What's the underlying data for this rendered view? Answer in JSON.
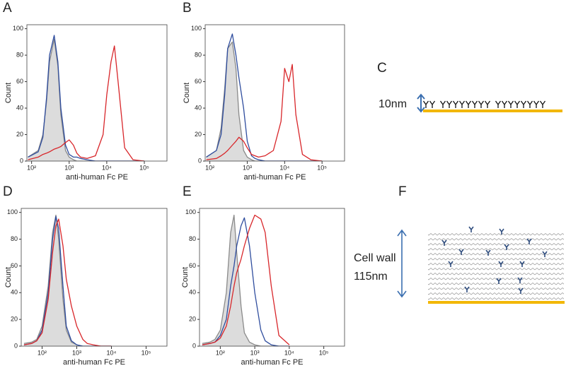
{
  "chart_data": [
    {
      "type": "histogram-overlay",
      "label": "A",
      "xlabel": "anti-human Fc PE",
      "ylabel": "Count",
      "log_x": true,
      "x": [
        80,
        150,
        200,
        250,
        300,
        400,
        500,
        600,
        800,
        1000,
        1300,
        1600,
        2000,
        3000,
        5000,
        8000,
        10000,
        13000,
        16000,
        20000,
        30000,
        50000,
        100000
      ],
      "xlim": [
        75,
        400000
      ],
      "ylim": [
        0,
        103
      ],
      "xticks": [
        {
          "value": 100,
          "label": "10²"
        },
        {
          "value": 1000,
          "label": "10³"
        },
        {
          "value": 10000,
          "label": "10⁴"
        },
        {
          "value": 100000,
          "label": "10⁵"
        }
      ],
      "yticks": [
        0,
        20,
        40,
        60,
        80,
        100
      ],
      "series": [
        {
          "color": "#8a8a8a",
          "fill": "#dcdcdc",
          "values": [
            3,
            8,
            20,
            45,
            75,
            92,
            72,
            35,
            8,
            3,
            1,
            0,
            0,
            0,
            0,
            0,
            0,
            0,
            0,
            0,
            0,
            0,
            0
          ]
        },
        {
          "color": "#2f4d9e",
          "values": [
            3,
            7,
            18,
            48,
            80,
            95,
            75,
            40,
            12,
            5,
            3,
            3,
            2,
            1,
            0,
            0,
            0,
            0,
            0,
            0,
            0,
            0,
            0
          ]
        },
        {
          "color": "#d8262a",
          "values": [
            1,
            3,
            5,
            6,
            7,
            9,
            10,
            11,
            14,
            16,
            12,
            6,
            3,
            2,
            4,
            20,
            50,
            75,
            87,
            60,
            10,
            1,
            0
          ]
        }
      ]
    },
    {
      "type": "histogram-overlay",
      "label": "B",
      "xlabel": "anti-human Fc PE",
      "ylabel": "Count",
      "log_x": true,
      "x": [
        80,
        150,
        200,
        250,
        300,
        400,
        500,
        600,
        800,
        1000,
        1300,
        1600,
        2000,
        3000,
        5000,
        8000,
        10000,
        13000,
        16000,
        20000,
        30000,
        50000,
        100000
      ],
      "xlim": [
        75,
        400000
      ],
      "ylim": [
        0,
        103
      ],
      "xticks": [
        {
          "value": 100,
          "label": "10²"
        },
        {
          "value": 1000,
          "label": "10³"
        },
        {
          "value": 10000,
          "label": "10⁴"
        },
        {
          "value": 100000,
          "label": "10⁵"
        }
      ],
      "yticks": [
        0,
        20,
        40,
        60,
        80,
        100
      ],
      "series": [
        {
          "color": "#8a8a8a",
          "fill": "#dcdcdc",
          "values": [
            3,
            8,
            25,
            55,
            85,
            90,
            70,
            35,
            8,
            3,
            1,
            0,
            0,
            0,
            0,
            0,
            0,
            0,
            0,
            0,
            0,
            0,
            0
          ]
        },
        {
          "color": "#2f4d9e",
          "values": [
            3,
            8,
            20,
            50,
            85,
            96,
            80,
            63,
            40,
            15,
            4,
            2,
            1,
            0,
            0,
            0,
            0,
            0,
            0,
            0,
            0,
            0,
            0
          ]
        },
        {
          "color": "#d8262a",
          "values": [
            1,
            2,
            4,
            6,
            8,
            12,
            15,
            18,
            15,
            10,
            5,
            4,
            3,
            4,
            8,
            30,
            70,
            60,
            73,
            35,
            5,
            1,
            0
          ]
        }
      ]
    },
    {
      "type": "histogram-overlay",
      "label": "D",
      "xlabel": "anti-human Fc PE",
      "ylabel": "Count",
      "log_x": true,
      "x": [
        30,
        50,
        70,
        100,
        150,
        200,
        250,
        300,
        400,
        500,
        700,
        1000,
        1500,
        2000,
        3000,
        5000,
        10000
      ],
      "xlim": [
        25,
        400000
      ],
      "ylim": [
        0,
        103
      ],
      "xticks": [
        {
          "value": 100,
          "label": "10²"
        },
        {
          "value": 1000,
          "label": "10³"
        },
        {
          "value": 10000,
          "label": "10⁴"
        },
        {
          "value": 100000,
          "label": "10⁵"
        }
      ],
      "yticks": [
        0,
        20,
        40,
        60,
        80,
        100
      ],
      "series": [
        {
          "color": "#8a8a8a",
          "fill": "#dcdcdc",
          "values": [
            2,
            3,
            5,
            15,
            45,
            85,
            98,
            80,
            35,
            12,
            3,
            1,
            0,
            0,
            0,
            0,
            0
          ]
        },
        {
          "color": "#2f4d9e",
          "values": [
            1,
            2,
            4,
            12,
            40,
            80,
            97,
            88,
            45,
            15,
            4,
            1,
            0,
            0,
            0,
            0,
            0
          ]
        },
        {
          "color": "#d8262a",
          "values": [
            1,
            2,
            4,
            10,
            35,
            70,
            90,
            95,
            75,
            50,
            30,
            15,
            5,
            2,
            1,
            0,
            0
          ]
        }
      ]
    },
    {
      "type": "histogram-overlay",
      "label": "E",
      "xlabel": "anti-human Fc PE",
      "ylabel": "Count",
      "log_x": true,
      "x": [
        30,
        50,
        70,
        100,
        150,
        200,
        250,
        300,
        400,
        500,
        700,
        1000,
        1500,
        2000,
        3000,
        5000,
        10000
      ],
      "xlim": [
        25,
        400000
      ],
      "ylim": [
        0,
        103
      ],
      "xticks": [
        {
          "value": 100,
          "label": "10²"
        },
        {
          "value": 1000,
          "label": "10³"
        },
        {
          "value": 10000,
          "label": "10⁴"
        },
        {
          "value": 100000,
          "label": "10⁵"
        }
      ],
      "yticks": [
        0,
        20,
        40,
        60,
        80,
        100
      ],
      "series": [
        {
          "color": "#8a8a8a",
          "fill": "#dcdcdc",
          "values": [
            2,
            3,
            5,
            12,
            40,
            85,
            98,
            70,
            30,
            10,
            3,
            1,
            0,
            0,
            0,
            0,
            0
          ]
        },
        {
          "color": "#2f4d9e",
          "values": [
            1,
            2,
            3,
            8,
            20,
            45,
            60,
            75,
            90,
            96,
            75,
            40,
            12,
            4,
            1,
            0,
            0
          ]
        },
        {
          "color": "#d8262a",
          "values": [
            1,
            2,
            3,
            6,
            15,
            30,
            45,
            55,
            65,
            75,
            88,
            98,
            95,
            85,
            45,
            8,
            1
          ]
        }
      ]
    }
  ],
  "diagram_c": {
    "label": "C",
    "thickness": "10nm"
  },
  "diagram_f": {
    "label": "F",
    "thickness_title": "Cell wall",
    "thickness": "115nm"
  }
}
